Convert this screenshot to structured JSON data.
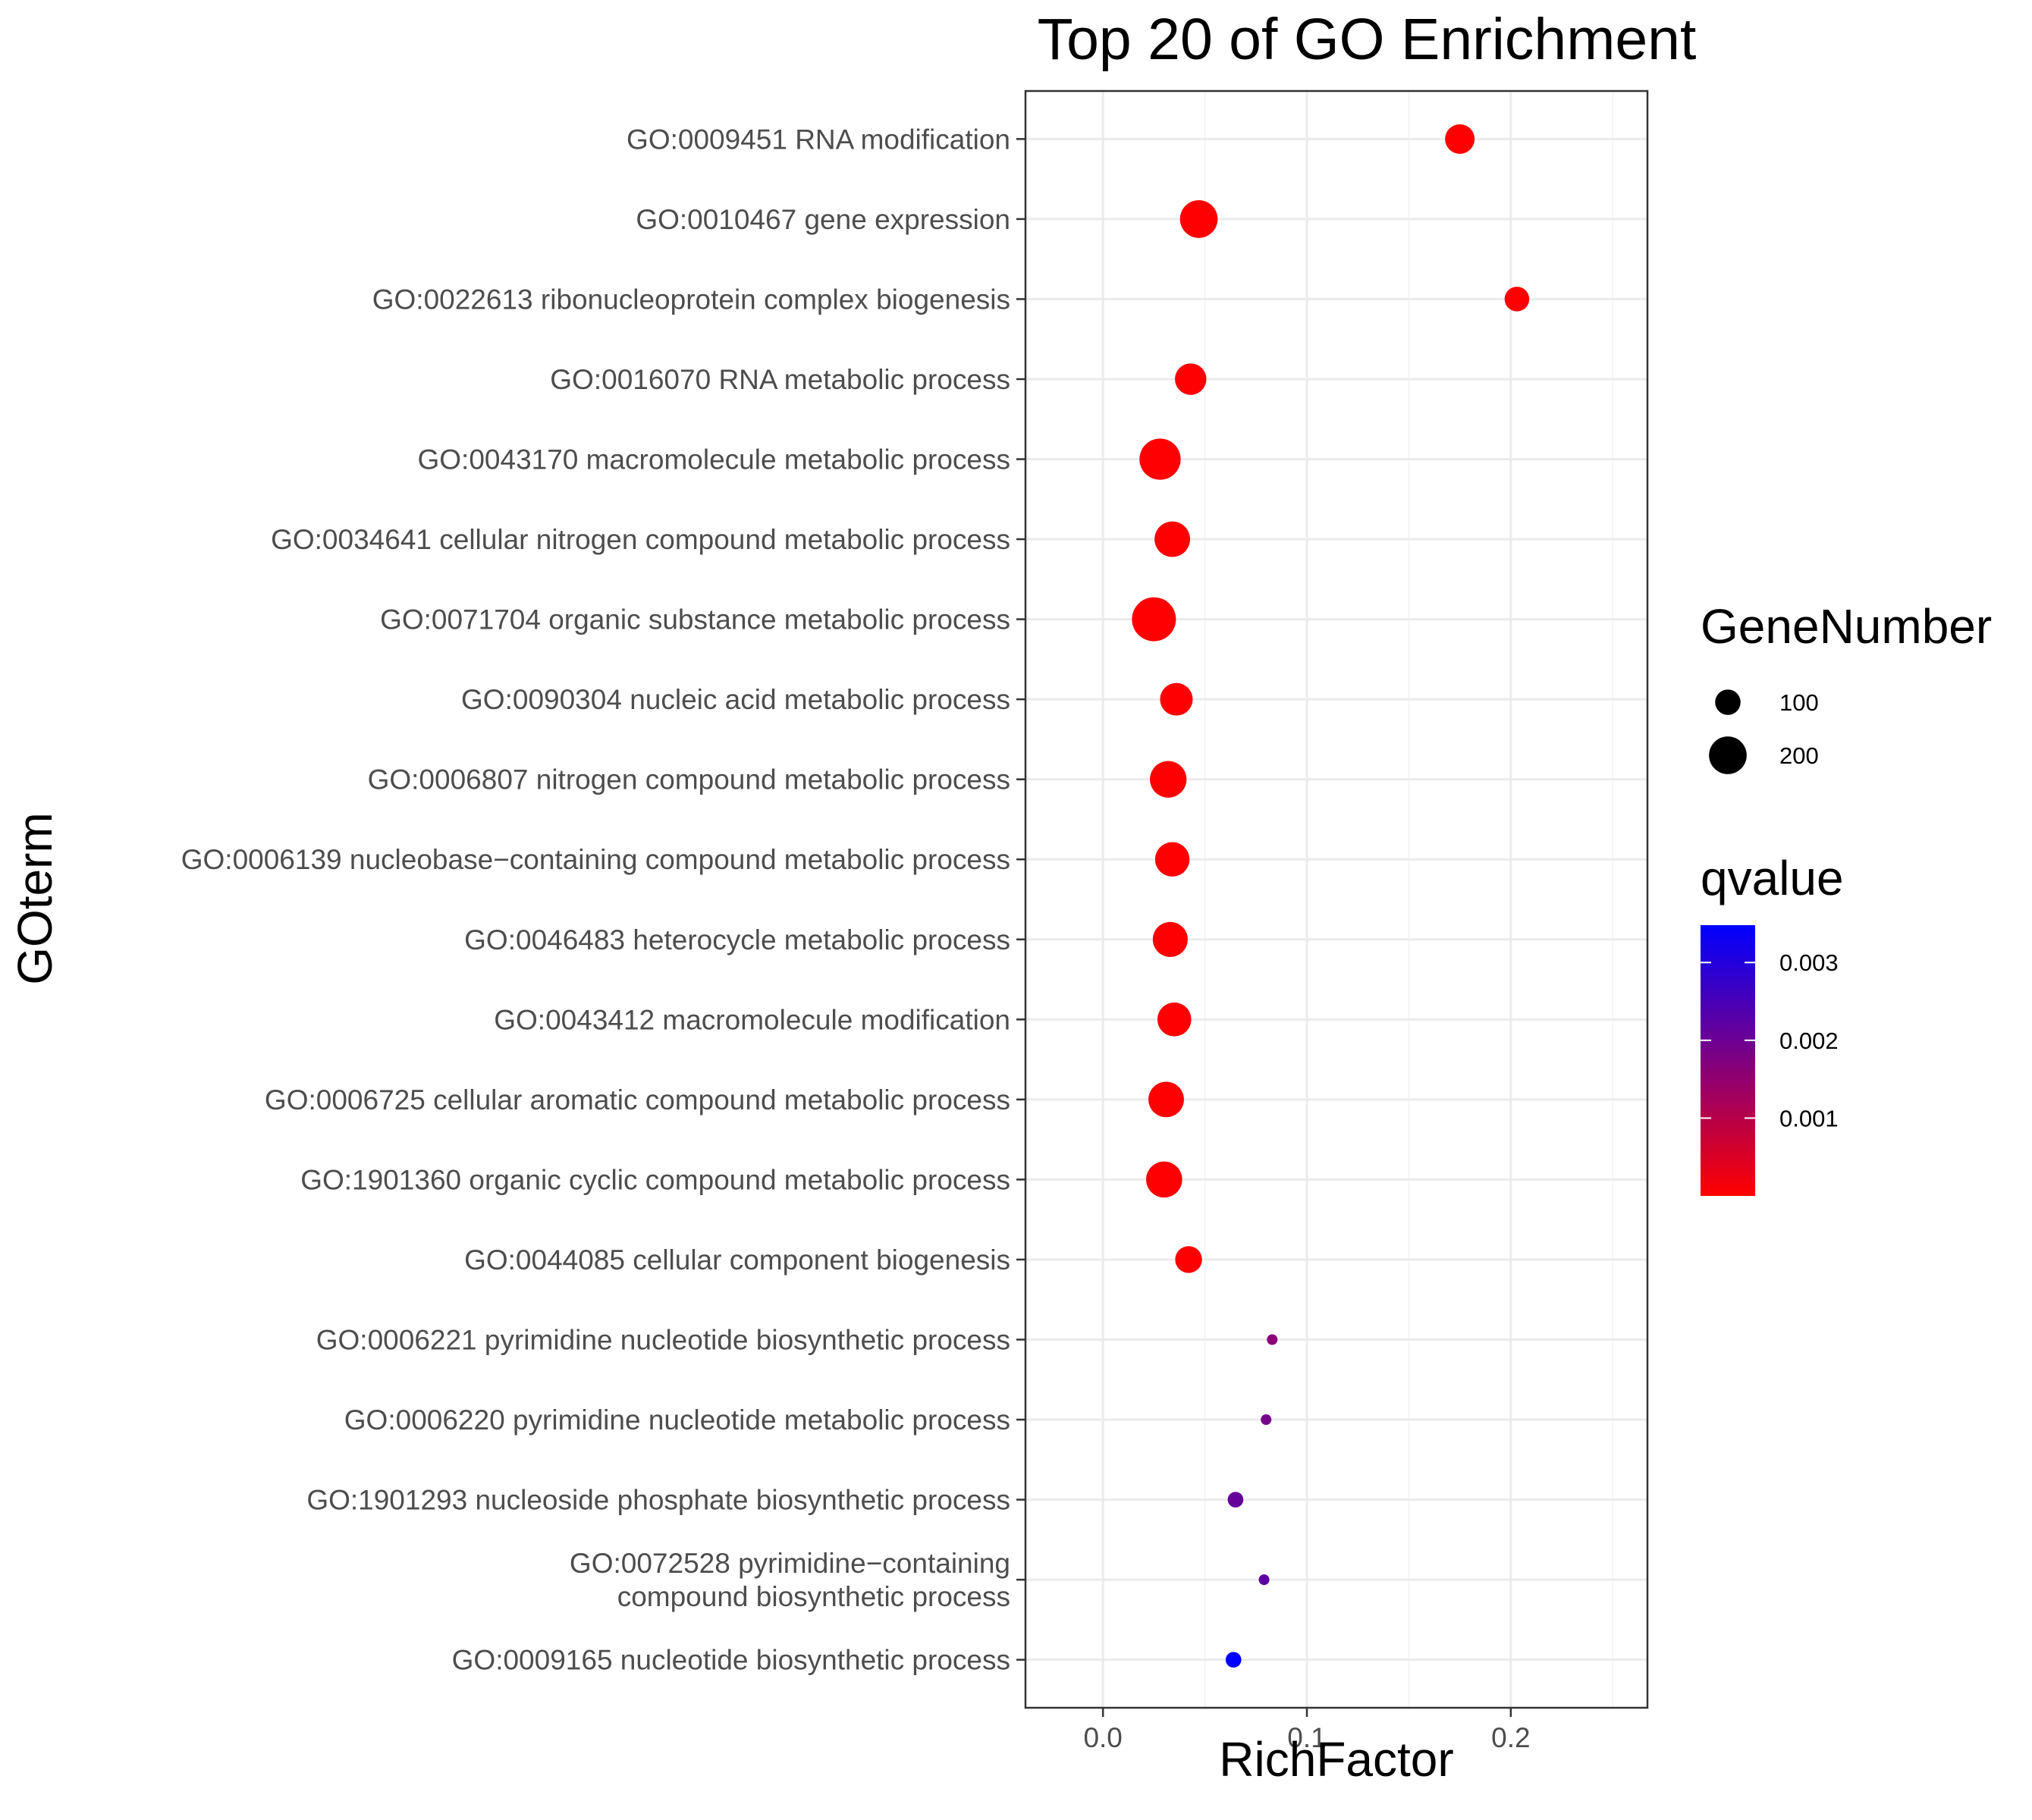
{
  "chart_data": {
    "type": "scatter",
    "title": "Top 20 of GO Enrichment",
    "xlabel": "RichFactor",
    "ylabel": "GOterm",
    "xlim": [
      -0.038,
      0.267
    ],
    "x_ticks": [
      "0.0",
      "0.1",
      "0.2"
    ],
    "x_tick_values": [
      0.0,
      0.1,
      0.2
    ],
    "grid": true,
    "legend_placement": "right",
    "size_legend": {
      "title": "GeneNumber",
      "labels": [
        "100",
        "200"
      ],
      "values": [
        100,
        200
      ]
    },
    "color_legend": {
      "title": "qvalue",
      "labels": [
        "0.003",
        "0.002",
        "0.001"
      ],
      "values": [
        0.003,
        0.002,
        0.001
      ],
      "range": [
        0.0,
        0.00348
      ],
      "low_color": "#ff0000",
      "high_color": "#0000ff"
    },
    "points": [
      {
        "term": [
          "GO:0009451 RNA modification"
        ],
        "x": 0.175,
        "size": 130,
        "q": 1e-05
      },
      {
        "term": [
          "GO:0010467 gene expression"
        ],
        "x": 0.047,
        "size": 200,
        "q": 1e-05
      },
      {
        "term": [
          "GO:0022613 ribonucleoprotein complex biogenesis"
        ],
        "x": 0.203,
        "size": 95,
        "q": 2e-05
      },
      {
        "term": [
          "GO:0016070 RNA metabolic process"
        ],
        "x": 0.043,
        "size": 145,
        "q": 1e-05
      },
      {
        "term": [
          "GO:0043170 macromolecule metabolic process"
        ],
        "x": 0.028,
        "size": 235,
        "q": 1e-05
      },
      {
        "term": [
          "GO:0034641 cellular nitrogen compound metabolic process"
        ],
        "x": 0.034,
        "size": 180,
        "q": 1e-05
      },
      {
        "term": [
          "GO:0071704 organic substance metabolic process"
        ],
        "x": 0.025,
        "size": 265,
        "q": 1e-05
      },
      {
        "term": [
          "GO:0090304 nucleic acid metabolic process"
        ],
        "x": 0.036,
        "size": 155,
        "q": 1e-05
      },
      {
        "term": [
          "GO:0006807 nitrogen compound metabolic process"
        ],
        "x": 0.032,
        "size": 190,
        "q": 1e-05
      },
      {
        "term": [
          "GO:0006139 nucleobase−containing compound metabolic process"
        ],
        "x": 0.034,
        "size": 170,
        "q": 1e-05
      },
      {
        "term": [
          "GO:0046483 heterocycle metabolic process"
        ],
        "x": 0.033,
        "size": 175,
        "q": 1e-05
      },
      {
        "term": [
          "GO:0043412 macromolecule modification"
        ],
        "x": 0.035,
        "size": 165,
        "q": 1e-05
      },
      {
        "term": [
          "GO:0006725 cellular aromatic compound metabolic process"
        ],
        "x": 0.031,
        "size": 180,
        "q": 1e-05
      },
      {
        "term": [
          "GO:1901360 organic cyclic compound metabolic process"
        ],
        "x": 0.03,
        "size": 185,
        "q": 1e-05
      },
      {
        "term": [
          "GO:0044085 cellular component biogenesis"
        ],
        "x": 0.042,
        "size": 110,
        "q": 3e-05
      },
      {
        "term": [
          "GO:0006221 pyrimidine nucleotide biosynthetic process"
        ],
        "x": 0.083,
        "size": 25,
        "q": 0.0016
      },
      {
        "term": [
          "GO:0006220 pyrimidine nucleotide metabolic process"
        ],
        "x": 0.08,
        "size": 25,
        "q": 0.0019
      },
      {
        "term": [
          "GO:1901293 nucleoside phosphate biosynthetic process"
        ],
        "x": 0.065,
        "size": 45,
        "q": 0.0021
      },
      {
        "term": [
          "GO:0072528 pyrimidine−containing",
          "compound biosynthetic process"
        ],
        "x": 0.079,
        "size": 25,
        "q": 0.0022
      },
      {
        "term": [
          "GO:0009165 nucleotide biosynthetic process"
        ],
        "x": 0.064,
        "size": 45,
        "q": 0.0035
      }
    ]
  }
}
